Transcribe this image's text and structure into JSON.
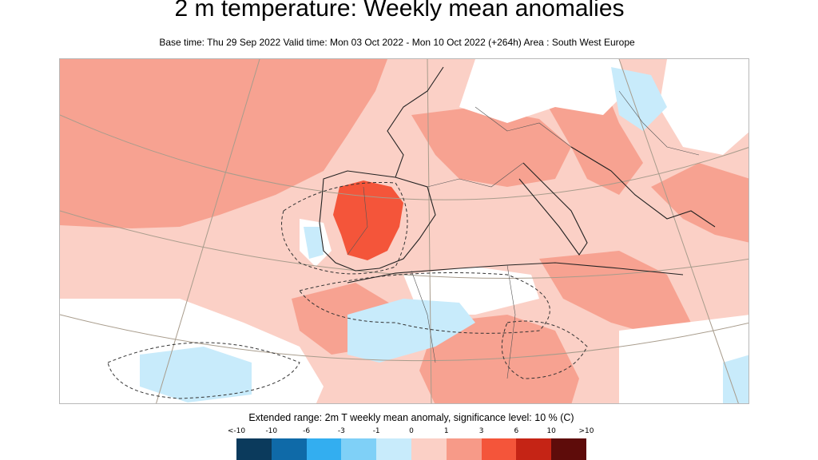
{
  "title": "2 m temperature: Weekly mean anomalies",
  "subtitle": "Base time: Thu 29 Sep 2022 Valid time: Mon 03 Oct 2022 - Mon 10 Oct 2022 (+264h) Area : South West Europe",
  "legend": {
    "title": "Extended range: 2m T weekly mean anomaly, significance level: 10 % (C)",
    "ticks": [
      "<-10",
      "-10",
      "-6",
      "-3",
      "-1",
      "0",
      "1",
      "3",
      "6",
      "10",
      ">10"
    ],
    "colors": [
      "#0b3a5c",
      "#0f6aa8",
      "#33aef0",
      "#7fd0f7",
      "#c8ebfb",
      "#fbd0c6",
      "#f79a88",
      "#f4553a",
      "#c52415",
      "#5e0c0a"
    ]
  },
  "map": {
    "area": "South West Europe",
    "background_color": "#fbd0c6",
    "graticule_color": "#a89c8c",
    "coastline_color": "#222222"
  }
}
